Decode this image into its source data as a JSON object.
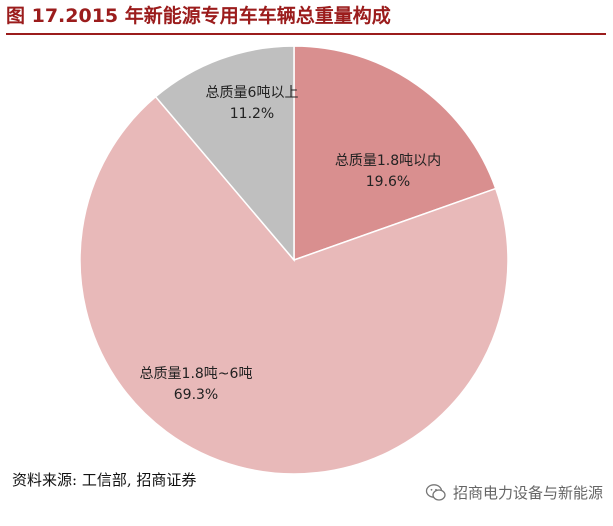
{
  "title": "图 17.2015 年新能源专用车车辆总重量构成",
  "source": "资料来源: 工信部, 招商证券",
  "watermark": "招商电力设备与新能源",
  "chart_data": {
    "type": "pie",
    "title": "图 17.2015 年新能源专用车车辆总重量构成",
    "slices": [
      {
        "label": "总质量1.8吨以内",
        "value": 19.6,
        "value_label": "19.6%",
        "color": "#d98f8f"
      },
      {
        "label": "总质量1.8吨~6吨",
        "value": 69.3,
        "value_label": "69.3%",
        "color": "#e8b9b9"
      },
      {
        "label": "总质量6吨以上",
        "value": 11.2,
        "value_label": "11.2%",
        "color": "#bfbfbf"
      }
    ],
    "start": "12 o'clock",
    "direction": "clockwise",
    "legend": "none"
  }
}
